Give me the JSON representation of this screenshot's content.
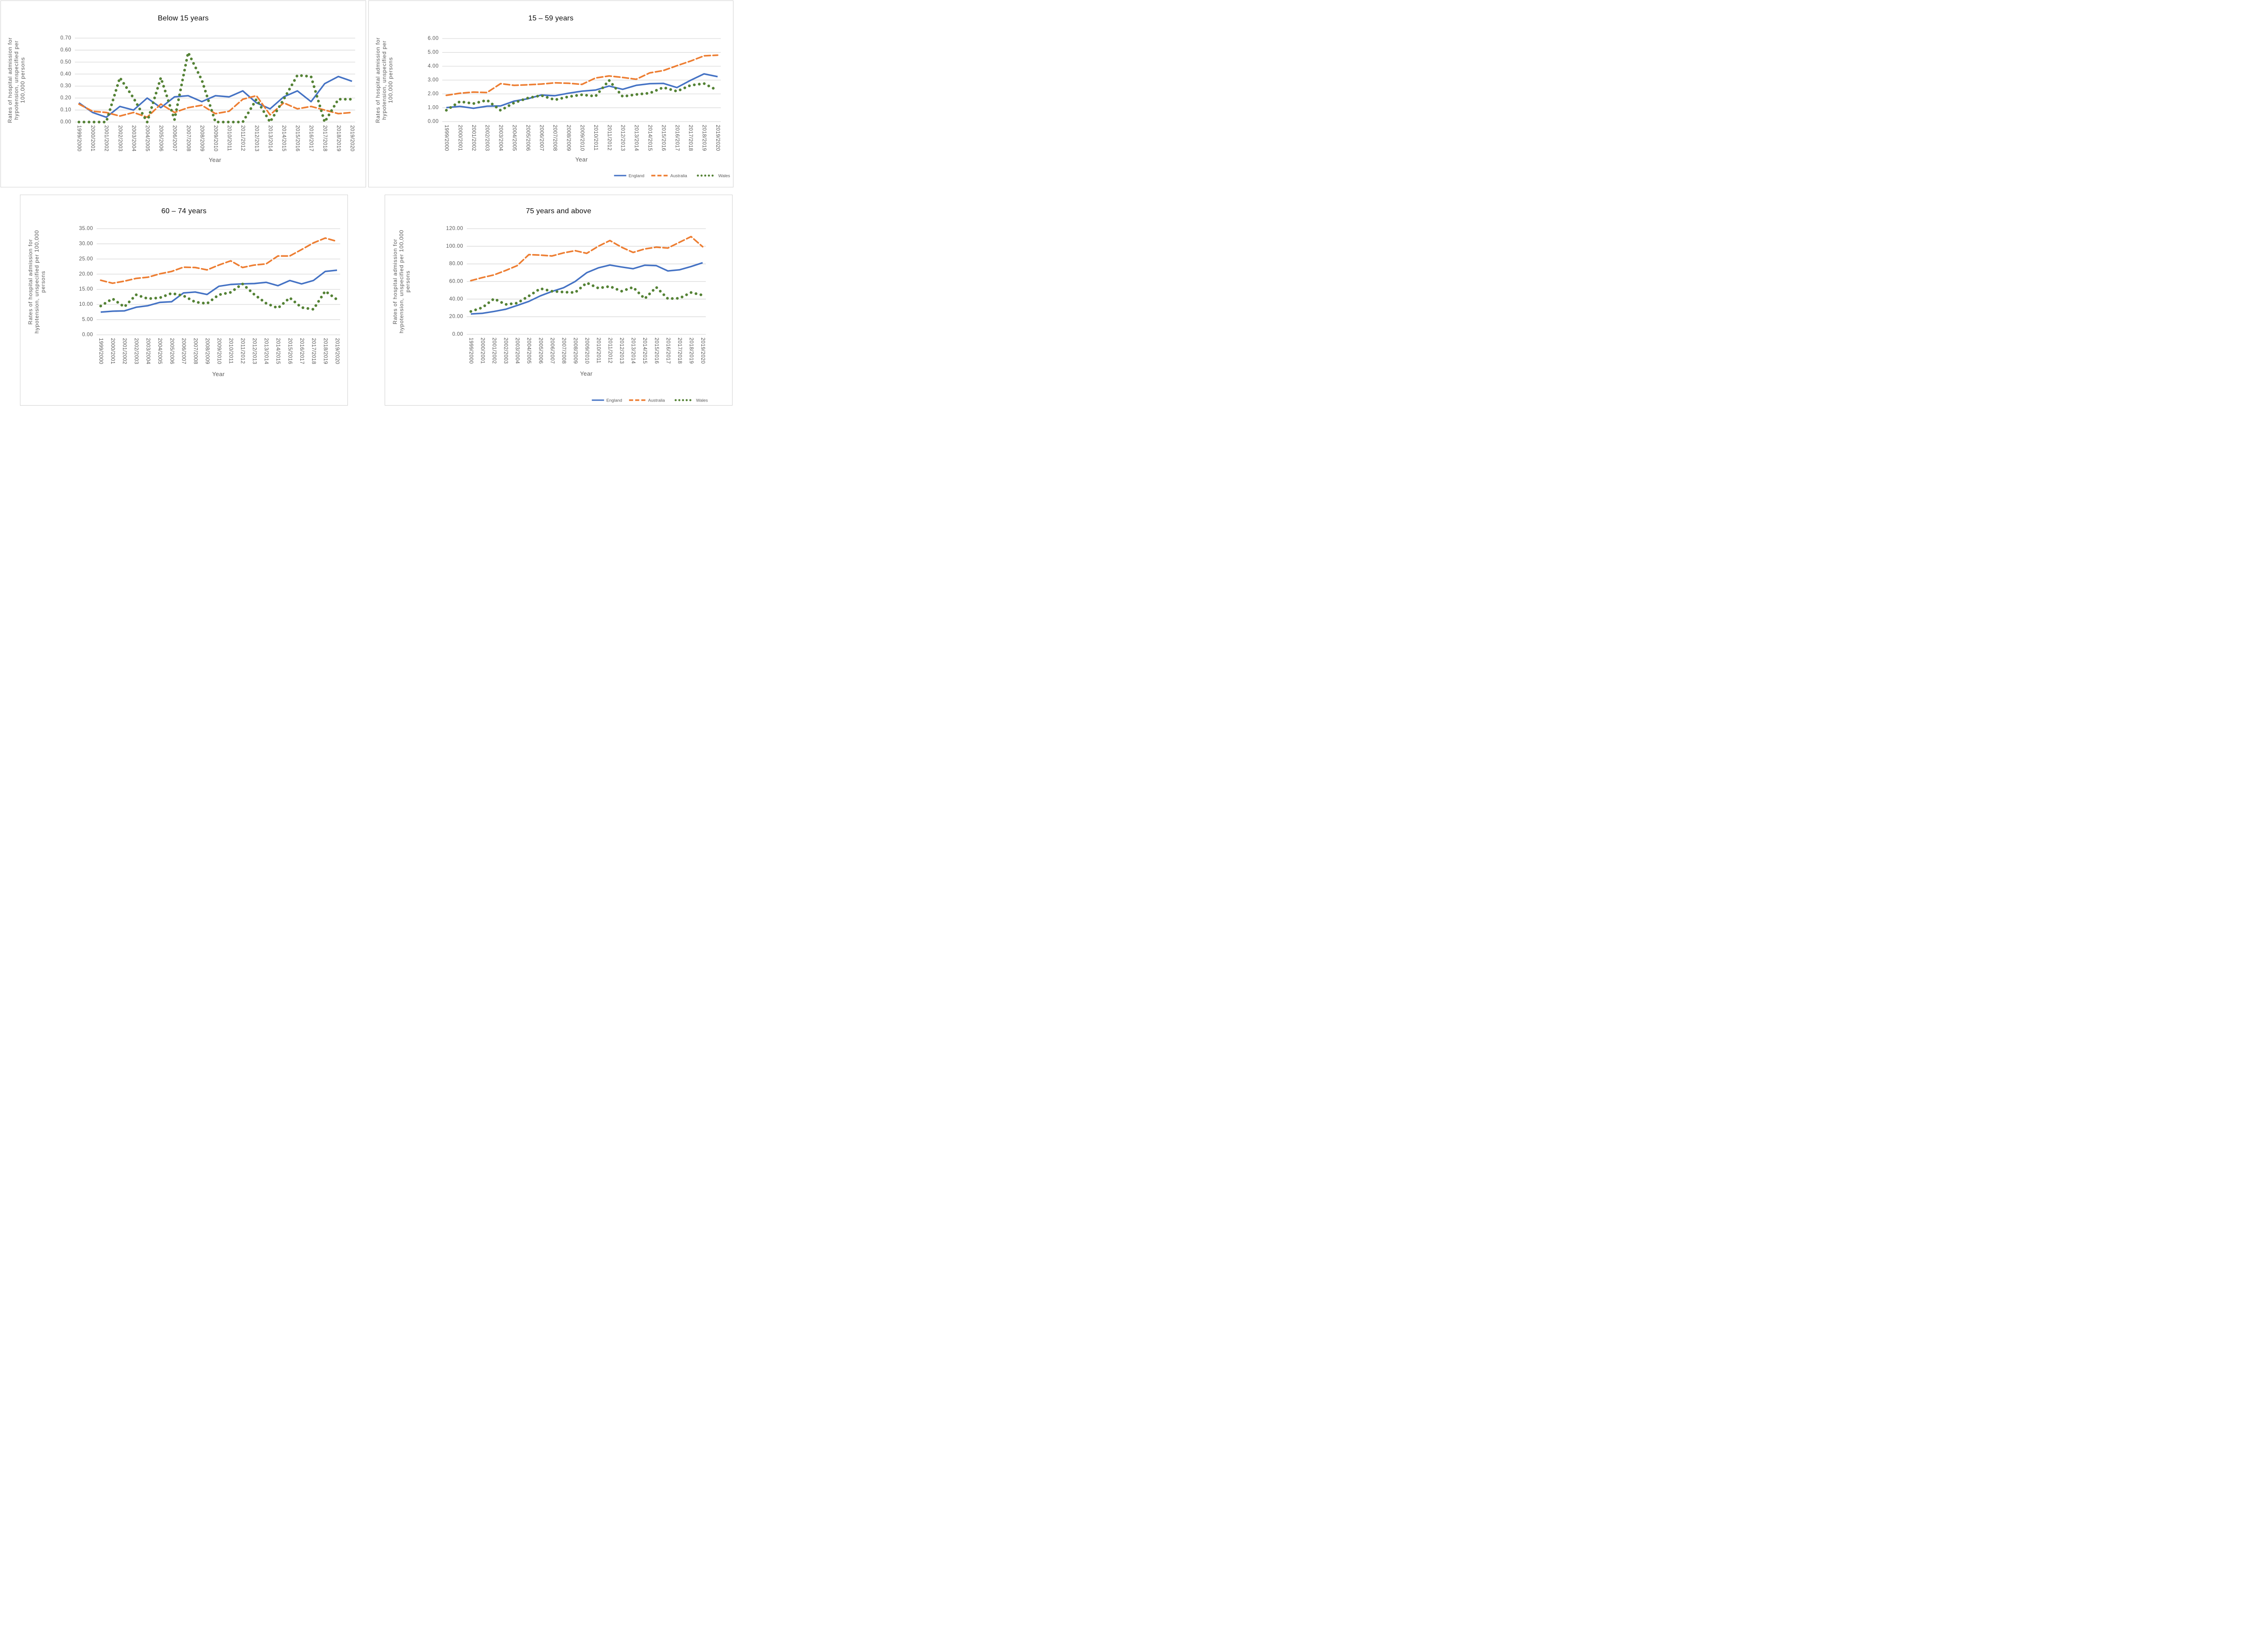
{
  "page_type": "excel-style line chart figure, 2x2 grid of panels",
  "colors": {
    "england": "#4472C4",
    "australia": "#ED7D31",
    "wales": "#548235",
    "gridline": "#D9D9D9",
    "panel_border": "#D2D2D2",
    "tick_text": "#595959",
    "title_text": "#0A0A0A"
  },
  "legend_labels": [
    "England",
    "Australia",
    "Wales"
  ],
  "chart_data": [
    {
      "type": "line",
      "title": "Below 15 years",
      "xlabel": "Year",
      "ylabel": "Rates of hospital admission for hypotension, unspecified per 100,000 persons",
      "ylabel_lines": [
        "Rates of hospital admission for",
        "hypotension, unspecified per",
        "100,000 persons"
      ],
      "ylim": [
        0,
        0.7
      ],
      "ytick_step": 0.1,
      "ytick_decimals": 2,
      "grid": true,
      "legend_position": "none",
      "categories": [
        "1999/2000",
        "2000/2001",
        "2001/2002",
        "2002/2003",
        "2003/2004",
        "2004/2005",
        "2005/2006",
        "2006/2007",
        "2007/2008",
        "2008/2009",
        "2009/2010",
        "2010/2011",
        "2011/2012",
        "2012/2013",
        "2013/2014",
        "2014/2015",
        "2015/2016",
        "2016/2017",
        "2017/2018",
        "2018/2019",
        "2019/2020"
      ],
      "series": [
        {
          "name": "England",
          "color_key": "england",
          "line_style": "solid",
          "values": [
            0.16,
            0.08,
            0.04,
            0.13,
            0.1,
            0.2,
            0.12,
            0.21,
            0.22,
            0.17,
            0.22,
            0.21,
            0.26,
            0.16,
            0.11,
            0.21,
            0.26,
            0.17,
            0.32,
            0.38,
            0.34
          ]
        },
        {
          "name": "Australia",
          "color_key": "australia",
          "line_style": "dashed",
          "values": [
            0.15,
            0.09,
            0.08,
            0.05,
            0.08,
            0.04,
            0.15,
            0.08,
            0.12,
            0.14,
            0.07,
            0.09,
            0.19,
            0.22,
            0.06,
            0.16,
            0.11,
            0.13,
            0.1,
            0.07,
            0.08
          ]
        },
        {
          "name": "Wales",
          "color_key": "wales",
          "line_style": "dotted",
          "values": [
            0.0,
            0.0,
            0.0,
            0.37,
            0.2,
            0.0,
            0.37,
            0.02,
            0.58,
            0.35,
            0.0,
            0.0,
            0.0,
            0.19,
            0.0,
            0.19,
            0.39,
            0.38,
            0.0,
            0.19,
            0.19
          ]
        }
      ]
    },
    {
      "type": "line",
      "title": "15 – 59 years",
      "xlabel": "Year",
      "ylabel": "Rates of hospital admission for hypotension, unspecified per 100,000 persons",
      "ylabel_lines": [
        "Rates of hospital admission for",
        "hypotension, unspecified per",
        "100,000 persons"
      ],
      "ylim": [
        0,
        6.0
      ],
      "ytick_step": 1.0,
      "ytick_decimals": 2,
      "grid": true,
      "legend_position": "bottom-right",
      "categories": [
        "1999/2000",
        "2000/2001",
        "2001/2002",
        "2002/2003",
        "2003/2004",
        "2004/2005",
        "2005/2006",
        "2006/2007",
        "2007/2008",
        "2008/2009",
        "2009/2010",
        "2010/2011",
        "2011/2012",
        "2012/2013",
        "2013/2014",
        "2014/2015",
        "2015/2016",
        "2016/2017",
        "2017/2018",
        "2018/2019",
        "2019/2020"
      ],
      "series": [
        {
          "name": "England",
          "color_key": "england",
          "line_style": "solid",
          "values": [
            1.01,
            1.1,
            0.96,
            1.11,
            1.13,
            1.48,
            1.65,
            1.92,
            1.87,
            2.05,
            2.2,
            2.28,
            2.57,
            2.33,
            2.62,
            2.74,
            2.76,
            2.46,
            2.98,
            3.45,
            3.25
          ]
        },
        {
          "name": "Australia",
          "color_key": "australia",
          "line_style": "dashed",
          "values": [
            1.9,
            2.05,
            2.13,
            2.1,
            2.74,
            2.62,
            2.66,
            2.71,
            2.8,
            2.77,
            2.69,
            3.15,
            3.3,
            3.19,
            3.06,
            3.52,
            3.69,
            4.04,
            4.37,
            4.75,
            4.8
          ]
        },
        {
          "name": "Wales",
          "color_key": "wales",
          "line_style": "dotted",
          "values": [
            0.82,
            1.45,
            1.3,
            1.55,
            0.81,
            1.36,
            1.7,
            1.89,
            1.57,
            1.8,
            1.94,
            1.83,
            2.98,
            1.81,
            1.96,
            2.06,
            2.47,
            2.19,
            2.62,
            2.75,
            2.25
          ]
        }
      ]
    },
    {
      "type": "line",
      "title": "60 – 74 years",
      "xlabel": "Year",
      "ylabel": "Rates of hospital admission for hypotension, unspecified per 100,000 persons",
      "ylabel_lines": [
        "Rates of hospital admission for",
        "hypotension, unspecified per 100,000",
        "persons"
      ],
      "ylim": [
        0,
        35.0
      ],
      "ytick_step": 5.0,
      "ytick_decimals": 2,
      "grid": true,
      "legend_position": "none",
      "categories": [
        "1999/2000",
        "2000/2001",
        "2001/2002",
        "2002/2003",
        "2003/2004",
        "2004/2005",
        "2005/2006",
        "2006/2007",
        "2007/2008",
        "2008/2009",
        "2009/2010",
        "2010/2011",
        "2011/2012",
        "2012/2013",
        "2013/2014",
        "2014/2015",
        "2015/2016",
        "2016/2017",
        "2017/2018",
        "2018/2019",
        "2019/2020"
      ],
      "series": [
        {
          "name": "England",
          "color_key": "england",
          "line_style": "solid",
          "values": [
            7.5,
            7.8,
            7.9,
            9.1,
            9.6,
            10.7,
            10.9,
            13.8,
            14.1,
            13.3,
            16.0,
            16.6,
            16.8,
            16.9,
            17.3,
            16.2,
            17.9,
            16.8,
            17.9,
            20.9,
            21.3
          ]
        },
        {
          "name": "Australia",
          "color_key": "australia",
          "line_style": "dashed",
          "values": [
            18.0,
            17.0,
            17.7,
            18.6,
            19.0,
            20.1,
            20.9,
            22.3,
            22.2,
            21.4,
            23.0,
            24.4,
            22.2,
            23.0,
            23.4,
            26.0,
            26.0,
            28.1,
            30.3,
            31.9,
            30.8
          ]
        },
        {
          "name": "Wales",
          "color_key": "wales",
          "line_style": "dotted",
          "values": [
            9.5,
            11.9,
            9.2,
            13.2,
            11.9,
            12.2,
            13.7,
            12.9,
            10.8,
            10.3,
            13.2,
            14.0,
            16.8,
            13.3,
            10.4,
            8.8,
            12.2,
            9.0,
            8.4,
            14.4,
            11.6
          ]
        }
      ]
    },
    {
      "type": "line",
      "title": "75 years and above",
      "xlabel": "Year",
      "ylabel": "Rates of hospital admission for hypotension, unspecified per 100,000 persons",
      "ylabel_lines": [
        "Rates of hospital admission for",
        "hypotension, unspecified per 100,000",
        "persons"
      ],
      "ylim": [
        0,
        120.0
      ],
      "ytick_step": 20.0,
      "ytick_decimals": 2,
      "grid": true,
      "legend_position": "bottom-right",
      "categories": [
        "1999/2000",
        "2000/2001",
        "2001/2002",
        "2002/2003",
        "2003/2004",
        "2004/2005",
        "2005/2006",
        "2006/2007",
        "2007/2008",
        "2008/2009",
        "2009/2010",
        "2010/2011",
        "2011/2012",
        "2012/2013",
        "2013/2014",
        "2014/2015",
        "2015/2016",
        "2016/2017",
        "2017/2018",
        "2018/2019",
        "2019/2020"
      ],
      "series": [
        {
          "name": "England",
          "color_key": "england",
          "line_style": "solid",
          "values": [
            23.1,
            23.9,
            26.0,
            28.5,
            32.8,
            37.4,
            43.7,
            48.7,
            52.9,
            60.0,
            70.0,
            75.5,
            78.7,
            76.5,
            74.5,
            78.5,
            78.0,
            72.0,
            73.3,
            77.0,
            81.3
          ]
        },
        {
          "name": "Australia",
          "color_key": "australia",
          "line_style": "dashed",
          "values": [
            61.0,
            64.5,
            67.5,
            72.5,
            78.0,
            90.5,
            90.0,
            89.0,
            92.5,
            95.0,
            92.0,
            100.0,
            106.5,
            99.0,
            93.0,
            97.0,
            99.0,
            98.0,
            104.5,
            111.0,
            99.5
          ]
        },
        {
          "name": "Wales",
          "color_key": "wales",
          "line_style": "dotted",
          "values": [
            26.0,
            30.5,
            40.5,
            34.0,
            35.5,
            43.5,
            52.0,
            49.0,
            48.0,
            47.5,
            58.5,
            52.5,
            54.5,
            49.0,
            53.5,
            40.5,
            53.5,
            40.5,
            41.0,
            47.5,
            44.5
          ]
        }
      ]
    }
  ]
}
